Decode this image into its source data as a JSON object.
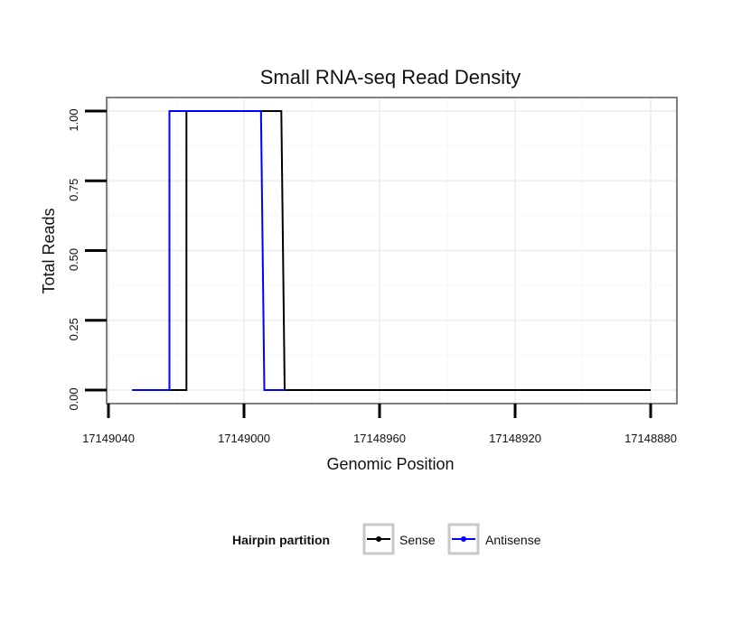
{
  "chart_data": {
    "type": "line",
    "title": "Small RNA-seq Read Density",
    "xlabel": "Genomic Position",
    "ylabel": "Total Reads",
    "x_reversed": true,
    "xlim": [
      17149040,
      17148880
    ],
    "ylim": [
      0,
      1
    ],
    "x_ticks": [
      17149040,
      17149000,
      17148960,
      17148920,
      17148880
    ],
    "x_tick_labels": [
      "17149040",
      "17149000",
      "17148960",
      "17148920",
      "17148880"
    ],
    "y_ticks": [
      0,
      0.25,
      0.5,
      0.75,
      1
    ],
    "y_tick_labels": [
      "0.00",
      "0.25",
      "0.50",
      "0.75",
      "1.00"
    ],
    "grid": true,
    "legend": {
      "title": "Hairpin partition",
      "position": "bottom"
    },
    "series": [
      {
        "name": "Sense",
        "color": "#000000",
        "x": [
          17149033,
          17149017,
          17149017,
          17149016,
          17148989,
          17148989,
          17148988,
          17148880
        ],
        "y": [
          0,
          0,
          1,
          1,
          1,
          1,
          0,
          0
        ]
      },
      {
        "name": "Antisense",
        "color": "#0000ff",
        "x": [
          17149033,
          17149022,
          17149022,
          17149021,
          17148995,
          17148995,
          17148994,
          17148988
        ],
        "y": [
          0,
          0,
          1,
          1,
          1,
          1,
          0,
          0
        ]
      }
    ]
  }
}
